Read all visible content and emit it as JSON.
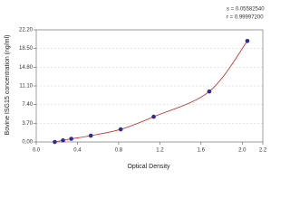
{
  "chart_data": {
    "type": "scatter",
    "xlabel": "Optical Density",
    "ylabel": "Bovine ISG15 concentration (ng/ml)",
    "annotations": [
      "s = 0.05582540",
      "r = 0.99997200"
    ],
    "xlim": [
      0,
      2.2
    ],
    "xticks": [
      {
        "value": 0,
        "label": "0.0"
      },
      0.4,
      0.8,
      1.2,
      1.6,
      {
        "value": 2,
        "label": "2.0"
      },
      2.2
    ],
    "ylim": [
      0,
      22.2
    ],
    "yticks": [
      {
        "value": 0,
        "label": "0.00"
      },
      {
        "value": 3.7,
        "label": "3.70"
      },
      {
        "value": 7.4,
        "label": "7.40"
      },
      {
        "value": 11.1,
        "label": "11.10"
      },
      {
        "value": 14.8,
        "label": "14.80"
      },
      {
        "value": 18.5,
        "label": "18.50"
      },
      {
        "value": 22.2,
        "label": "22.20"
      }
    ],
    "grid": true,
    "series": [
      {
        "color": "#2b2b9a",
        "line_color": "#cc2222",
        "x": [
          0.18,
          0.26,
          0.34,
          0.53,
          0.82,
          1.14,
          1.68,
          2.05
        ],
        "values": [
          0,
          0.312,
          0.625,
          1.25,
          2.5,
          5,
          10,
          20
        ]
      }
    ]
  }
}
